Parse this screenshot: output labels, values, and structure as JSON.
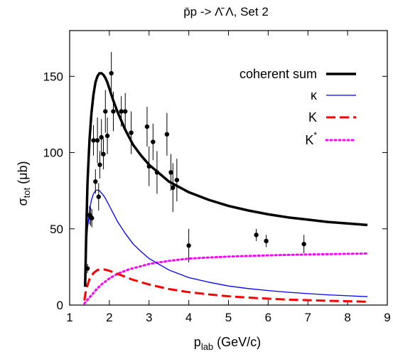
{
  "chart_data": {
    "type": "line",
    "title": "p̄p ->  Λ̄ Λ, Set 2",
    "xlabel": "p",
    "xlabel_sub": "lab",
    "xlabel_unit": " (GeV/c)",
    "ylabel": "σ",
    "ylabel_sub": "tot",
    "ylabel_unit": " (μb)",
    "xlim": [
      1,
      9
    ],
    "ylim": [
      0,
      180
    ],
    "xticks": [
      1,
      2,
      3,
      4,
      5,
      6,
      7,
      8,
      9
    ],
    "yticks": [
      0,
      50,
      100,
      150
    ],
    "legend_position": "top-right",
    "grid": false,
    "series": [
      {
        "name": "coherent sum",
        "style": "solid-thick",
        "color": "#000000",
        "x": [
          1.39,
          1.42,
          1.45,
          1.5,
          1.55,
          1.6,
          1.65,
          1.7,
          1.75,
          1.8,
          1.85,
          1.9,
          1.95,
          2.0,
          2.1,
          2.2,
          2.4,
          2.6,
          2.8,
          3.0,
          3.5,
          4.0,
          4.5,
          5.0,
          5.5,
          6.0,
          6.5,
          7.0,
          7.5,
          8.0,
          8.5
        ],
        "y": [
          12,
          50,
          80,
          108,
          126,
          138,
          146,
          150,
          152,
          152,
          151,
          149,
          146,
          142,
          134,
          127,
          115,
          105,
          98,
          92,
          81,
          74,
          69,
          65,
          62,
          59.5,
          57.5,
          56,
          54.5,
          53.5,
          52.5
        ]
      },
      {
        "name": "κ",
        "style": "solid-thin",
        "color": "#0000ff",
        "x": [
          1.37,
          1.4,
          1.45,
          1.5,
          1.55,
          1.6,
          1.65,
          1.7,
          1.75,
          1.8,
          1.85,
          1.9,
          2.0,
          2.1,
          2.2,
          2.4,
          2.6,
          2.8,
          3.0,
          3.5,
          4.0,
          4.5,
          5.0,
          5.5,
          6.0,
          6.5,
          7.0,
          7.5,
          8.0,
          8.5
        ],
        "y": [
          13,
          30,
          50,
          62,
          69,
          73,
          75,
          75.5,
          75,
          73.5,
          72,
          70,
          65,
          60,
          55,
          47,
          40,
          35,
          30.5,
          23,
          18,
          15,
          12.5,
          10.8,
          9.5,
          8.4,
          7.5,
          6.7,
          6.1,
          5.5
        ]
      },
      {
        "name": "K",
        "style": "dashed",
        "color": "#ff0000",
        "x": [
          1.37,
          1.4,
          1.45,
          1.5,
          1.6,
          1.7,
          1.8,
          1.9,
          2.0,
          2.2,
          2.4,
          2.6,
          3.0,
          3.5,
          4.0,
          4.5,
          5.0,
          5.5,
          6.0,
          6.5,
          7.0,
          7.5,
          8.0,
          8.5
        ],
        "y": [
          3,
          8,
          13,
          17,
          21,
          23,
          23.5,
          23.2,
          22.5,
          20.5,
          18.5,
          16.5,
          13.5,
          10.5,
          8.5,
          7,
          5.8,
          4.9,
          4.2,
          3.6,
          3.2,
          2.8,
          2.5,
          2.2
        ]
      },
      {
        "name": "K*",
        "style": "dotted",
        "color": "#ff00ff",
        "x": [
          1.37,
          1.4,
          1.5,
          1.6,
          1.7,
          1.8,
          2.0,
          2.2,
          2.5,
          2.8,
          3.0,
          3.5,
          4.0,
          4.5,
          5.0,
          5.5,
          6.0,
          6.5,
          7.0,
          7.5,
          8.0,
          8.5
        ],
        "y": [
          1,
          2,
          5,
          8,
          11,
          13.5,
          17.5,
          20.5,
          23.5,
          25.5,
          27,
          29,
          30.5,
          31.2,
          31.8,
          32.2,
          32.6,
          32.9,
          33.2,
          33.4,
          33.6,
          33.8
        ]
      }
    ],
    "legend": {
      "series0_label": "coherent sum",
      "series1_label": "κ",
      "series2_label": "K",
      "series3_label": "K",
      "series3_sup": "*"
    },
    "data_points": {
      "x": [
        1.45,
        1.5,
        1.53,
        1.56,
        1.6,
        1.65,
        1.7,
        1.73,
        1.76,
        1.8,
        1.85,
        1.9,
        1.95,
        2.05,
        2.1,
        2.3,
        2.4,
        2.55,
        2.95,
        3.0,
        3.1,
        3.2,
        3.45,
        3.55,
        3.6,
        3.7,
        4.0,
        5.7,
        5.95,
        6.9
      ],
      "y": [
        24,
        59,
        58,
        57,
        108,
        81,
        108,
        71,
        92,
        110,
        99,
        127,
        111,
        152,
        127,
        127,
        127,
        113,
        117,
        91,
        107,
        87,
        112,
        87,
        77,
        82,
        39,
        46,
        42,
        40
      ],
      "yerr": [
        3,
        6,
        6,
        6,
        10,
        8,
        15,
        9,
        9,
        12,
        10,
        14,
        12,
        14,
        13,
        10,
        12,
        14,
        13,
        13,
        12,
        14,
        14,
        12,
        16,
        14,
        11,
        4,
        4,
        6
      ]
    }
  }
}
